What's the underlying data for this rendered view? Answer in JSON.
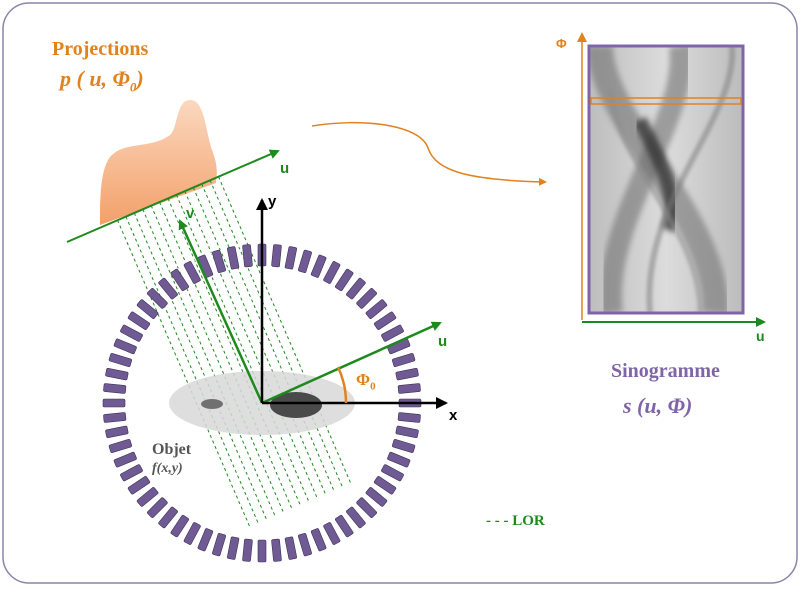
{
  "labels": {
    "projections_title": "Projections",
    "projections_formula": "p ( u, Φ",
    "projections_sub": "0",
    "projections_close": ")",
    "u_projection": "u",
    "v_axis": "v",
    "y_axis": "y",
    "x_axis": "x",
    "u_rotated": "u",
    "phi0": "Φ",
    "phi0_sub": "0",
    "object_title": "Objet",
    "object_formula": "f(x,y)",
    "lor_legend": "- - -  LOR",
    "sino_phi_axis": "Φ",
    "sino_u_axis": "u",
    "sinogram_title": "Sinogramme",
    "sinogram_formula": "s (u, Φ)"
  },
  "colors": {
    "frame_border": "#8c84a8",
    "green": "#1e8a1e",
    "orange": "#e0821e",
    "purple": "#7f65a8",
    "detector": "#6f5a93",
    "black": "#000000"
  }
}
